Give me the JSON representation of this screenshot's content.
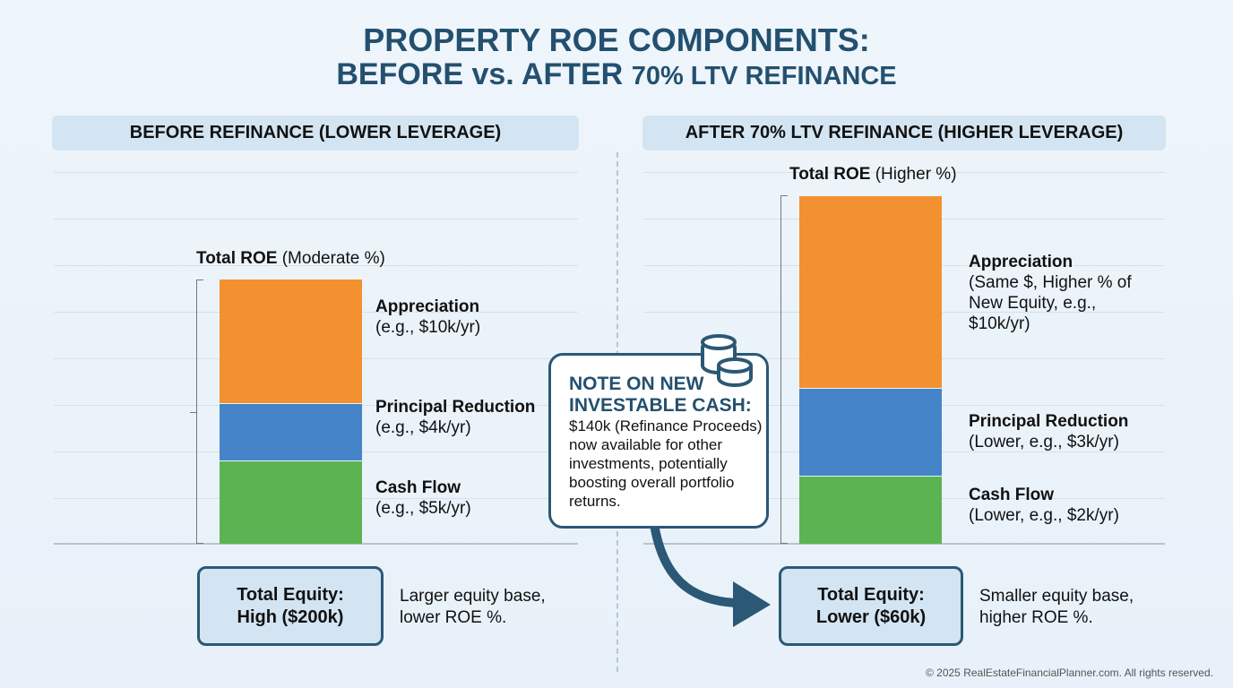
{
  "title": {
    "line1": "PROPERTY ROE COMPONENTS:",
    "line2_big": "BEFORE vs. AFTER",
    "line2_small": "70% LTV REFINANCE"
  },
  "chart_data": [
    {
      "type": "bar",
      "stacked": true,
      "title": "BEFORE REFINANCE (LOWER LEVERAGE)",
      "total_label_bold": "Total ROE",
      "total_label": "(Moderate %)",
      "segments": [
        {
          "name": "Cash Flow",
          "detail": "(e.g., $5k/yr)",
          "value_k_per_yr": 5,
          "color": "#5cb352"
        },
        {
          "name": "Principal Reduction",
          "detail": "(e.g., $4k/yr)",
          "value_k_per_yr": 4,
          "color": "#4584c8"
        },
        {
          "name": "Appreciation",
          "detail": "(e.g., $10k/yr)",
          "value_k_per_yr": 10,
          "color": "#f39130"
        }
      ],
      "equity": {
        "line1": "Total Equity:",
        "line2": "High ($200k)",
        "value_k": 200,
        "note": "Larger equity base, lower ROE %."
      }
    },
    {
      "type": "bar",
      "stacked": true,
      "title": "AFTER 70% LTV REFINANCE (HIGHER LEVERAGE)",
      "total_label_bold": "Total ROE",
      "total_label": "(Higher %)",
      "segments": [
        {
          "name": "Cash Flow",
          "detail": "(Lower, e.g., $2k/yr)",
          "value_k_per_yr": 2,
          "color": "#5cb352"
        },
        {
          "name": "Principal Reduction",
          "detail": "(Lower, e.g., $3k/yr)",
          "value_k_per_yr": 3,
          "color": "#4584c8"
        },
        {
          "name": "Appreciation",
          "detail": "(Same $, Higher % of New Equity, e.g., $10k/yr)",
          "value_k_per_yr": 10,
          "color": "#f39130"
        }
      ],
      "equity": {
        "line1": "Total Equity:",
        "line2": "Lower ($60k)",
        "value_k": 60,
        "note": "Smaller equity base, higher ROE %."
      }
    }
  ],
  "note": {
    "title": "NOTE ON NEW INVESTABLE CASH:",
    "body": "$140k (Refinance Proceeds) now available for other investments, potentially boosting overall portfolio returns.",
    "icon": "coins-icon"
  },
  "copyright": "© 2025 RealEstateFinancialPlanner.com. All rights reserved.",
  "colors": {
    "title": "#24506f",
    "accent": "#2b5875"
  }
}
